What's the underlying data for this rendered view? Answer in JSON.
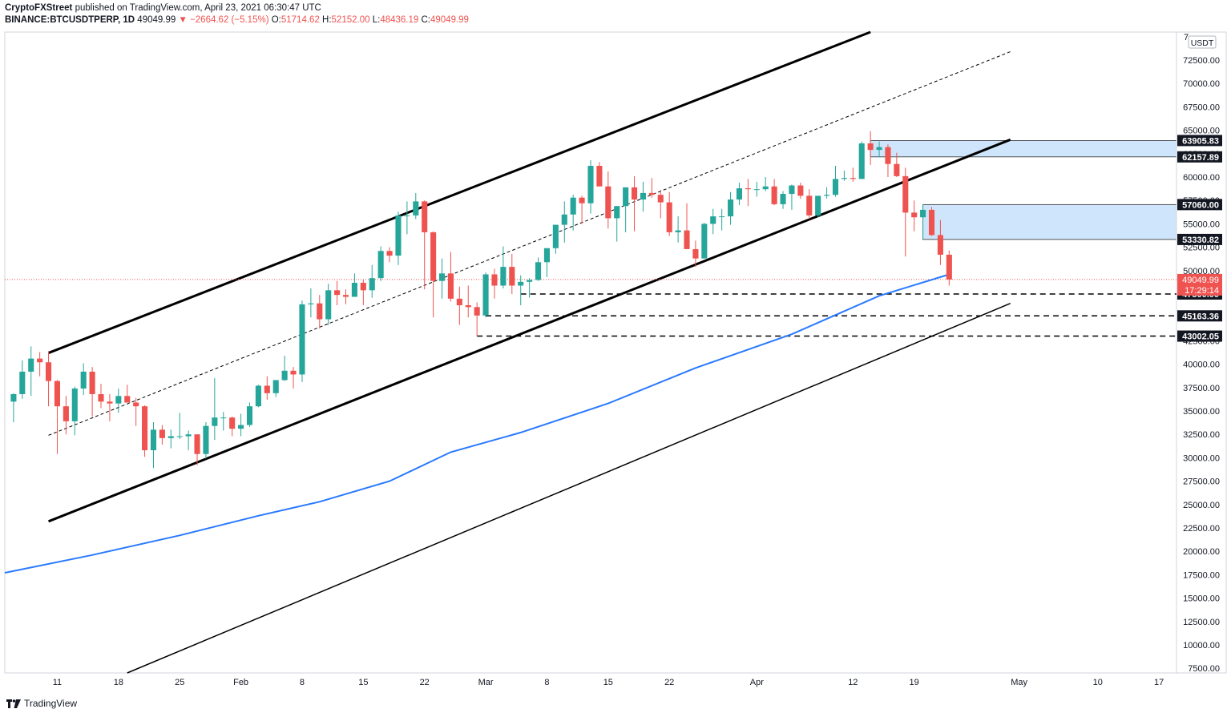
{
  "header": {
    "publisher": "CryptoFXStreet",
    "published_text": "published on TradingView.com, April 23, 2021 06:30:47 UTC",
    "symbol": "BINANCE:BTCUSDTPERP, 1D",
    "last": "49049.99",
    "change_arrow": "▼",
    "change": "−2664.62 (−5.15%)",
    "o_label": "O:",
    "o": "51714.62",
    "h_label": "H:",
    "h": "52152.00",
    "l_label": "L:",
    "l": "48436.19",
    "c_label": "C:",
    "c": "49049.99"
  },
  "footer": {
    "brand": "TradingView"
  },
  "colors": {
    "up": "#26a69a",
    "down": "#ef5350",
    "ma": "#2979ff",
    "zone": "#cfe5fb"
  },
  "chart_data": {
    "type": "candlestick",
    "currency": "USDT",
    "ylim": [
      7000,
      75500
    ],
    "y_ticks": [
      7500,
      10000,
      12500,
      15000,
      17500,
      20000,
      22500,
      25000,
      27500,
      30000,
      32500,
      35000,
      37500,
      40000,
      42500,
      45000,
      47500,
      50000,
      52500,
      55000,
      57500,
      60000,
      62500,
      65000,
      67500,
      70000,
      72500
    ],
    "y_tick_labels": [
      "7500.00",
      "10000.00",
      "12500.00",
      "15000.00",
      "17500.00",
      "20000.00",
      "22500.00",
      "25000.00",
      "27500.00",
      "30000.00",
      "32500.00",
      "35000.00",
      "37500.00",
      "40000.00",
      "42500.00",
      "45000.00",
      "47500.00",
      "50000.00",
      "52500.00",
      "55000.00",
      "57500.00",
      "60000.00",
      "62500.00",
      "65000.00",
      "67500.00",
      "70000.00",
      "72500.00"
    ],
    "top_partial_tick": "7",
    "x_start": "2021-01-05",
    "x_end": "2021-05-19",
    "x_ticks": [
      {
        "date": "2021-01-11",
        "label": "11"
      },
      {
        "date": "2021-01-18",
        "label": "18"
      },
      {
        "date": "2021-01-25",
        "label": "25"
      },
      {
        "date": "2021-02-01",
        "label": "Feb"
      },
      {
        "date": "2021-02-08",
        "label": "8"
      },
      {
        "date": "2021-02-15",
        "label": "15"
      },
      {
        "date": "2021-02-22",
        "label": "22"
      },
      {
        "date": "2021-03-01",
        "label": "Mar"
      },
      {
        "date": "2021-03-08",
        "label": "8"
      },
      {
        "date": "2021-03-15",
        "label": "15"
      },
      {
        "date": "2021-03-22",
        "label": "22"
      },
      {
        "date": "2021-04-01",
        "label": "Apr"
      },
      {
        "date": "2021-04-12",
        "label": "12"
      },
      {
        "date": "2021-04-19",
        "label": "19"
      },
      {
        "date": "2021-05-01",
        "label": "May"
      },
      {
        "date": "2021-05-10",
        "label": "10"
      },
      {
        "date": "2021-05-17",
        "label": "17"
      }
    ],
    "candles": [
      [
        "2021-01-06",
        36000,
        36900,
        33800,
        36800
      ],
      [
        "2021-01-07",
        36800,
        40400,
        36300,
        39200
      ],
      [
        "2021-01-08",
        39200,
        41900,
        36600,
        40600
      ],
      [
        "2021-01-09",
        40600,
        41300,
        38700,
        40200
      ],
      [
        "2021-01-10",
        40200,
        41400,
        35500,
        38200
      ],
      [
        "2021-01-11",
        38200,
        38300,
        30400,
        35500
      ],
      [
        "2021-01-12",
        35500,
        36600,
        32500,
        33900
      ],
      [
        "2021-01-13",
        33900,
        37600,
        32400,
        37400
      ],
      [
        "2021-01-14",
        37400,
        40100,
        36700,
        39200
      ],
      [
        "2021-01-15",
        39200,
        39700,
        34400,
        36800
      ],
      [
        "2021-01-16",
        36800,
        37900,
        35300,
        36000
      ],
      [
        "2021-01-17",
        36000,
        36800,
        33900,
        35800
      ],
      [
        "2021-01-18",
        35800,
        37400,
        34800,
        36600
      ],
      [
        "2021-01-19",
        36600,
        37800,
        35900,
        35900
      ],
      [
        "2021-01-20",
        35900,
        36400,
        33400,
        35500
      ],
      [
        "2021-01-21",
        35500,
        35600,
        30100,
        30800
      ],
      [
        "2021-01-22",
        30800,
        33800,
        28900,
        33000
      ],
      [
        "2021-01-23",
        33000,
        33500,
        31400,
        32100
      ],
      [
        "2021-01-24",
        32100,
        33000,
        31000,
        32300
      ],
      [
        "2021-01-25",
        32300,
        34800,
        32000,
        32300
      ],
      [
        "2021-01-26",
        32300,
        32900,
        30800,
        32500
      ],
      [
        "2021-01-27",
        32500,
        32500,
        29200,
        30400
      ],
      [
        "2021-01-28",
        30400,
        33800,
        29900,
        33400
      ],
      [
        "2021-01-29",
        33400,
        38500,
        31900,
        34300
      ],
      [
        "2021-01-30",
        34300,
        34900,
        32900,
        34300
      ],
      [
        "2021-01-31",
        34300,
        34400,
        32300,
        33100
      ],
      [
        "2021-02-01",
        33100,
        34700,
        32300,
        33500
      ],
      [
        "2021-02-02",
        33500,
        35900,
        33300,
        35500
      ],
      [
        "2021-02-03",
        35500,
        37800,
        35400,
        37700
      ],
      [
        "2021-02-04",
        37700,
        38700,
        36200,
        36900
      ],
      [
        "2021-02-05",
        36900,
        38300,
        36500,
        38300
      ],
      [
        "2021-02-06",
        38300,
        40900,
        38200,
        39300
      ],
      [
        "2021-02-07",
        39300,
        39700,
        37400,
        38900
      ],
      [
        "2021-02-08",
        38900,
        46800,
        38100,
        46400
      ],
      [
        "2021-02-09",
        46400,
        48100,
        45000,
        46500
      ],
      [
        "2021-02-10",
        46500,
        47400,
        43800,
        44800
      ],
      [
        "2021-02-11",
        44800,
        48600,
        44200,
        47900
      ],
      [
        "2021-02-12",
        47900,
        48900,
        46300,
        47400
      ],
      [
        "2021-02-13",
        47400,
        48000,
        46400,
        47200
      ],
      [
        "2021-02-14",
        47200,
        49700,
        47200,
        48700
      ],
      [
        "2021-02-15",
        48700,
        49000,
        46300,
        47900
      ],
      [
        "2021-02-16",
        47900,
        50600,
        47100,
        49200
      ],
      [
        "2021-02-17",
        49200,
        52600,
        48900,
        52100
      ],
      [
        "2021-02-18",
        52100,
        52500,
        50900,
        51600
      ],
      [
        "2021-02-19",
        51600,
        56300,
        50600,
        55900
      ],
      [
        "2021-02-20",
        55900,
        57400,
        53900,
        55900
      ],
      [
        "2021-02-21",
        55900,
        58300,
        55500,
        57400
      ],
      [
        "2021-02-22",
        57400,
        57500,
        48000,
        54100
      ],
      [
        "2021-02-23",
        54100,
        54200,
        45000,
        48900
      ],
      [
        "2021-02-24",
        48900,
        51300,
        47000,
        49700
      ],
      [
        "2021-02-25",
        49700,
        52000,
        46700,
        47000
      ],
      [
        "2021-02-26",
        47000,
        48300,
        44200,
        46300
      ],
      [
        "2021-02-27",
        46300,
        48400,
        45000,
        46100
      ],
      [
        "2021-02-28",
        46100,
        46600,
        43000,
        45200
      ],
      [
        "2021-03-01",
        45200,
        49800,
        45000,
        49600
      ],
      [
        "2021-03-02",
        49600,
        50200,
        47000,
        48400
      ],
      [
        "2021-03-03",
        48400,
        52600,
        48100,
        50400
      ],
      [
        "2021-03-04",
        50400,
        51800,
        47500,
        48400
      ],
      [
        "2021-03-05",
        48400,
        49500,
        46300,
        48800
      ],
      [
        "2021-03-06",
        48800,
        49200,
        47100,
        49000
      ],
      [
        "2021-03-07",
        49000,
        51400,
        48900,
        50900
      ],
      [
        "2021-03-08",
        50900,
        52400,
        49300,
        52400
      ],
      [
        "2021-03-09",
        52400,
        54900,
        51800,
        54900
      ],
      [
        "2021-03-10",
        54900,
        57400,
        53000,
        56000
      ],
      [
        "2021-03-11",
        56000,
        58100,
        54300,
        57800
      ],
      [
        "2021-03-12",
        57800,
        58000,
        55000,
        57200
      ],
      [
        "2021-03-13",
        57200,
        61800,
        56100,
        61200
      ],
      [
        "2021-03-14",
        61200,
        61600,
        59000,
        59000
      ],
      [
        "2021-03-15",
        59000,
        60600,
        54500,
        55600
      ],
      [
        "2021-03-16",
        55600,
        56900,
        53100,
        56900
      ],
      [
        "2021-03-17",
        56900,
        58900,
        54100,
        58900
      ],
      [
        "2021-03-18",
        58900,
        60100,
        54200,
        57600
      ],
      [
        "2021-03-19",
        57600,
        59500,
        56300,
        58300
      ],
      [
        "2021-03-20",
        58300,
        59900,
        57800,
        58100
      ],
      [
        "2021-03-21",
        58100,
        58600,
        55600,
        57300
      ],
      [
        "2021-03-22",
        57300,
        58400,
        53700,
        54100
      ],
      [
        "2021-03-23",
        54100,
        55800,
        53000,
        54300
      ],
      [
        "2021-03-24",
        54300,
        57200,
        52900,
        52300
      ],
      [
        "2021-03-25",
        52300,
        53200,
        50400,
        51300
      ],
      [
        "2021-03-26",
        51300,
        55100,
        51300,
        55000
      ],
      [
        "2021-03-27",
        55000,
        56600,
        53900,
        55800
      ],
      [
        "2021-03-28",
        55800,
        56600,
        54300,
        55800
      ],
      [
        "2021-03-29",
        55800,
        58400,
        54900,
        57600
      ],
      [
        "2021-03-30",
        57600,
        59400,
        57000,
        58800
      ],
      [
        "2021-03-31",
        58800,
        59800,
        56900,
        58700
      ],
      [
        "2021-04-01",
        58700,
        59500,
        57900,
        58700
      ],
      [
        "2021-04-02",
        58700,
        60000,
        58500,
        59000
      ],
      [
        "2021-04-03",
        59000,
        59800,
        57000,
        57100
      ],
      [
        "2021-04-04",
        57100,
        58500,
        56600,
        58200
      ],
      [
        "2021-04-05",
        58200,
        59200,
        56500,
        59100
      ],
      [
        "2021-04-06",
        59100,
        59400,
        57700,
        58000
      ],
      [
        "2021-04-07",
        58000,
        58700,
        55500,
        55900
      ],
      [
        "2021-04-08",
        55900,
        58000,
        55700,
        58000
      ],
      [
        "2021-04-09",
        58000,
        58900,
        57700,
        58100
      ],
      [
        "2021-04-10",
        58100,
        61200,
        57900,
        59800
      ],
      [
        "2021-04-11",
        59800,
        60700,
        59600,
        59900
      ],
      [
        "2021-04-12",
        59900,
        61000,
        59500,
        59800
      ],
      [
        "2021-04-13",
        59800,
        63800,
        59800,
        63600
      ],
      [
        "2021-04-14",
        63600,
        64900,
        61300,
        62900
      ],
      [
        "2021-04-15",
        62900,
        63800,
        62100,
        63200
      ],
      [
        "2021-04-16",
        63200,
        63500,
        60000,
        61400
      ],
      [
        "2021-04-17",
        61400,
        62600,
        60000,
        60100
      ],
      [
        "2021-04-18",
        60100,
        61000,
        51500,
        56200
      ],
      [
        "2021-04-19",
        56200,
        57500,
        54200,
        55700
      ],
      [
        "2021-04-20",
        55700,
        57100,
        53400,
        56500
      ],
      [
        "2021-04-21",
        56500,
        56800,
        53700,
        53800
      ],
      [
        "2021-04-22",
        53800,
        55400,
        50600,
        51700
      ],
      [
        "2021-04-23",
        51700,
        52150,
        48400,
        49050
      ]
    ],
    "ma_line": [
      [
        "2021-01-05",
        17700
      ],
      [
        "2021-01-15",
        19600
      ],
      [
        "2021-01-25",
        21700
      ],
      [
        "2021-02-03",
        23800
      ],
      [
        "2021-02-10",
        25300
      ],
      [
        "2021-02-18",
        27500
      ],
      [
        "2021-02-25",
        30600
      ],
      [
        "2021-03-05",
        32700
      ],
      [
        "2021-03-15",
        35800
      ],
      [
        "2021-03-25",
        39600
      ],
      [
        "2021-04-05",
        43200
      ],
      [
        "2021-04-15",
        47300
      ],
      [
        "2021-04-23",
        49600
      ]
    ],
    "trendlines": [
      {
        "style": "thick",
        "from": [
          "2021-01-10",
          41200
        ],
        "to": [
          "2021-04-14",
          75500
        ]
      },
      {
        "style": "thick",
        "from": [
          "2021-01-10",
          23200
        ],
        "to": [
          "2021-04-30",
          64000
        ]
      },
      {
        "style": "dashed-thin",
        "from": [
          "2021-01-10",
          32400
        ],
        "to": [
          "2021-04-30",
          73400
        ]
      },
      {
        "style": "thin",
        "from": [
          "2021-01-19",
          7000
        ],
        "to": [
          "2021-04-30",
          46500
        ]
      }
    ],
    "zones": [
      {
        "from": "2021-04-14",
        "to": "2021-05-19",
        "top": 63905.83,
        "bottom": 62157.89
      },
      {
        "from": "2021-04-20",
        "to": "2021-05-19",
        "top": 57060.0,
        "bottom": 53330.82
      }
    ],
    "levels": [
      {
        "value": 47500.0,
        "from": "2021-03-05"
      },
      {
        "value": 45163.36,
        "from": "2021-03-01"
      },
      {
        "value": 43002.05,
        "from": "2021-02-28"
      }
    ],
    "price_labels": [
      {
        "value": 63905.83,
        "text": "63905.83",
        "kind": "level"
      },
      {
        "value": 62157.89,
        "text": "62157.89",
        "kind": "level"
      },
      {
        "value": 57060.0,
        "text": "57060.00",
        "kind": "level"
      },
      {
        "value": 53330.82,
        "text": "53330.82",
        "kind": "level"
      },
      {
        "value": 47500.0,
        "text": "47500.00",
        "kind": "level"
      },
      {
        "value": 45163.36,
        "text": "45163.36",
        "kind": "level"
      },
      {
        "value": 43002.05,
        "text": "43002.05",
        "kind": "level"
      }
    ],
    "last_price": {
      "value": 49049.99,
      "text": "49049.99",
      "countdown": "17:29:14"
    }
  }
}
